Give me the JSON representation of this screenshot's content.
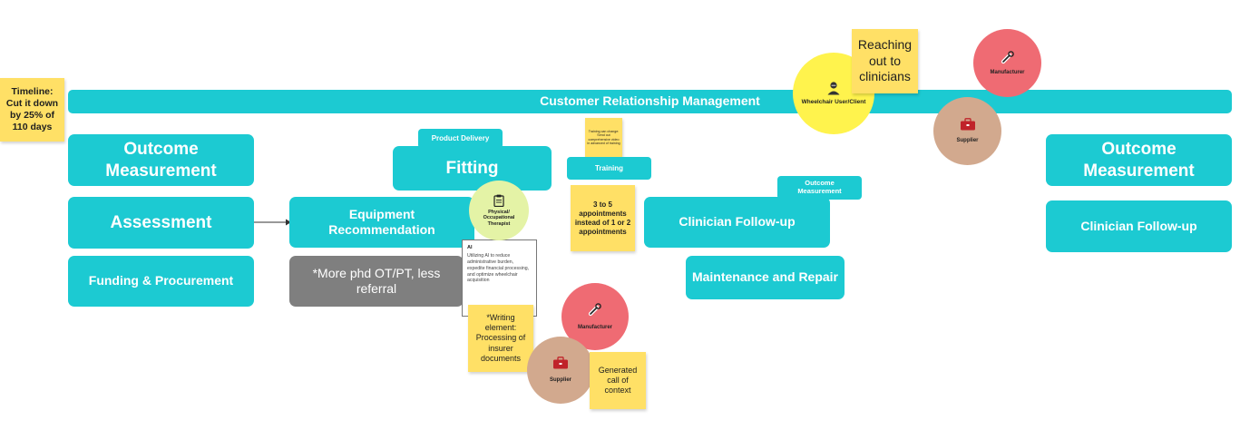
{
  "timeline": {
    "text": "Timeline: Cut it down by 25% of 110 days"
  },
  "crm_bar": {
    "label": "Customer Relationship Management"
  },
  "left_column": {
    "outcome": "Outcome Measurement",
    "assessment": "Assessment",
    "funding": "Funding & Procurement"
  },
  "center": {
    "product_delivery": "Product Delivery",
    "fitting": "Fitting",
    "equipment": "Equipment Recommendation",
    "more_phd": "*More phd OT/PT, less referral",
    "therapist": "Physical/ Occupational Therapist"
  },
  "ai_note": {
    "title": "AI",
    "body": "Utilizing AI to reduce administrative burden, expedite financial processing, and optimize wheelchair acquisition"
  },
  "stickies": {
    "writing": "*Writing element: Processing of insurer documents",
    "generated": "Generated call of context",
    "training_small": "Training can change: Send out comprehensive video in advanced of training",
    "appointments": "3 to 5 appointments instead of 1 or 2 appointments",
    "reaching": "Reaching out to clinicians"
  },
  "training": {
    "label": "Training"
  },
  "middle_right": {
    "outcome_small": "Outcome Measurement",
    "clinician": "Clinician Follow-up",
    "maintenance": "Maintenance and Repair"
  },
  "right_column": {
    "outcome": "Outcome Measurement",
    "clinician": "Clinician Follow-up"
  },
  "roles": {
    "manufacturer": "Manufacturer",
    "supplier": "Supplier",
    "wheelchair_user": "Wheelchair User/Client"
  },
  "colors": {
    "teal": "#1ccad2",
    "sticky": "#ffe066",
    "manufacturer": "#ef6b73",
    "supplier": "#d2a98e",
    "wheelchair_user": "#fff34d",
    "therapist": "#e4f3a6",
    "gray_box": "#7f7f7f"
  },
  "icons": {
    "manufacturer": "wrench-icon",
    "supplier": "toolbox-icon",
    "wheelchair_user": "person-icon",
    "therapist": "clipboard-icon"
  }
}
